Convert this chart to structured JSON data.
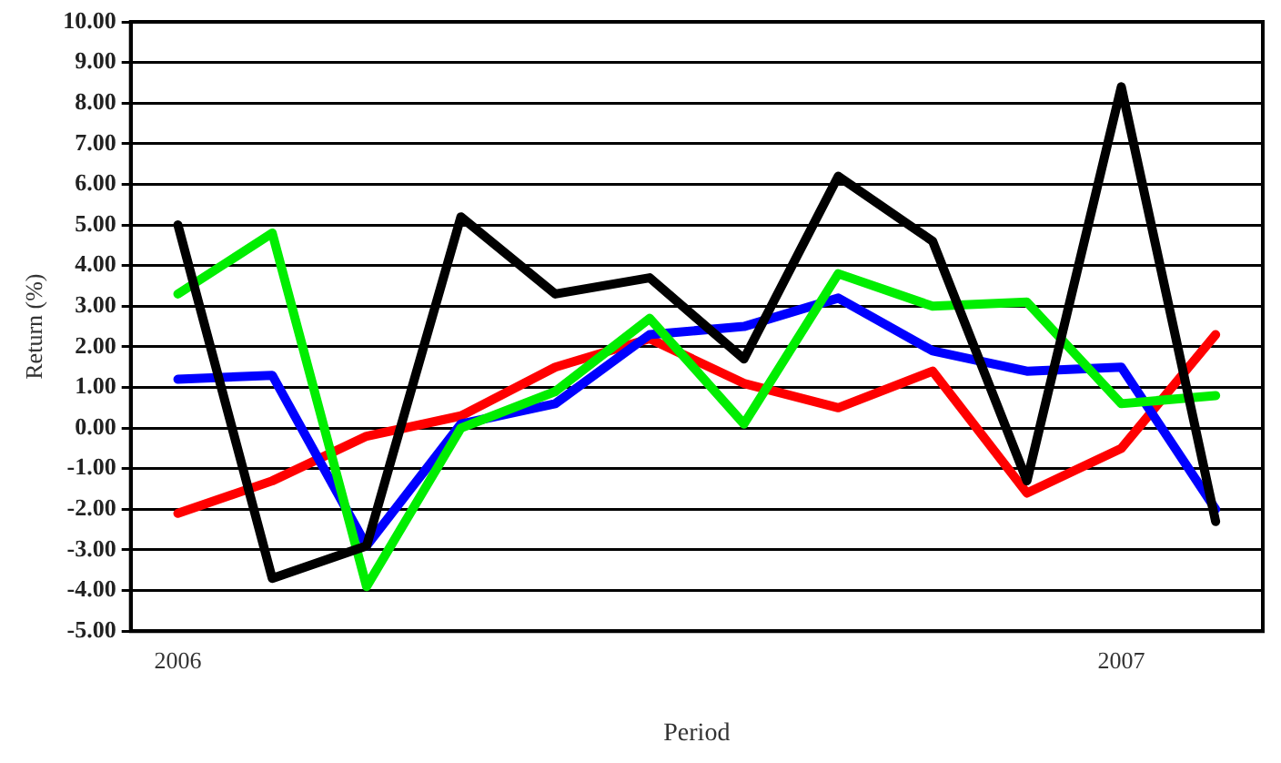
{
  "chart_data": {
    "type": "line",
    "xlabel": "Period",
    "ylabel": "Return (%)",
    "categories": [
      "2006",
      null,
      null,
      null,
      null,
      null,
      null,
      null,
      null,
      null,
      "2007",
      null
    ],
    "series": [
      {
        "color": "#000000",
        "values": [
          5.0,
          -3.7,
          -2.9,
          5.2,
          3.3,
          3.7,
          1.7,
          6.2,
          4.6,
          -1.3,
          8.4,
          -2.3
        ]
      },
      {
        "color": "#00ee00",
        "values": [
          3.3,
          4.8,
          -3.9,
          0.0,
          0.9,
          2.7,
          0.1,
          3.8,
          3.0,
          3.1,
          0.6,
          0.8
        ]
      },
      {
        "color": "#0000ff",
        "values": [
          1.2,
          1.3,
          -2.9,
          0.1,
          0.6,
          2.3,
          2.5,
          3.2,
          1.9,
          1.4,
          1.5,
          -2.0
        ]
      },
      {
        "color": "#ff0000",
        "values": [
          -2.1,
          -1.3,
          -0.2,
          0.3,
          1.5,
          2.2,
          1.1,
          0.5,
          1.4,
          -1.6,
          -0.5,
          2.3
        ]
      }
    ],
    "ylim": [
      -5,
      10
    ],
    "yticks": [
      {
        "value": -5,
        "label": "-5.00"
      },
      {
        "value": -4,
        "label": "-4.00"
      },
      {
        "value": -3,
        "label": "-3.00"
      },
      {
        "value": -2,
        "label": "-2.00"
      },
      {
        "value": -1,
        "label": "-1.00"
      },
      {
        "value": 0,
        "label": "0.00"
      },
      {
        "value": 1,
        "label": "1.00"
      },
      {
        "value": 2,
        "label": "2.00"
      },
      {
        "value": 3,
        "label": "3.00"
      },
      {
        "value": 4,
        "label": "4.00"
      },
      {
        "value": 5,
        "label": "5.00"
      },
      {
        "value": 6,
        "label": "6.00"
      },
      {
        "value": 7,
        "label": "7.00"
      },
      {
        "value": 8,
        "label": "8.00"
      },
      {
        "value": 9,
        "label": "9.00"
      },
      {
        "value": 10,
        "label": "10.00"
      }
    ],
    "grid": "y",
    "legend": false,
    "marker": "none",
    "line_style": "solid"
  }
}
